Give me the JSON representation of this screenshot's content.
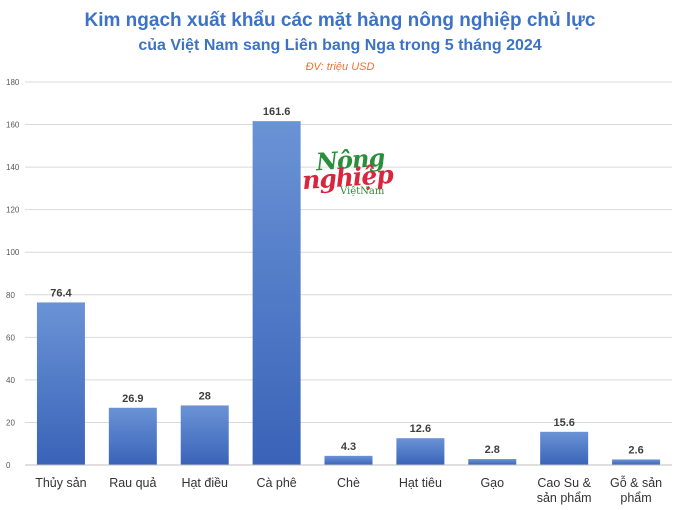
{
  "chart_data": {
    "type": "bar",
    "title": "Kim ngạch xuất khẩu các mặt hàng nông nghiệp chủ lực",
    "subtitle": "của Việt Nam sang Liên bang Nga trong 5 tháng 2024",
    "unit_note": "ĐV: triệu USD",
    "categories": [
      "Thủy sản",
      "Rau quả",
      "Hạt điều",
      "Cà phê",
      "Chè",
      "Hạt tiêu",
      "Gạo",
      "Cao Su & sản phẩm",
      "Gỗ & sản phẩm"
    ],
    "values": [
      76.4,
      26.9,
      28,
      161.6,
      4.3,
      12.6,
      2.8,
      15.6,
      2.6
    ],
    "value_labels": [
      "76.4",
      "26.9",
      "28",
      "161.6",
      "4.3",
      "12.6",
      "2.8",
      "15.6",
      "2.6"
    ],
    "ylim": [
      0,
      180
    ],
    "yticks": [
      0,
      20,
      40,
      60,
      80,
      100,
      120,
      140,
      160,
      180
    ],
    "grid": true,
    "bar_color_top": "#6a93d6",
    "bar_color_bottom": "#3a63b8"
  },
  "logo": {
    "line1": "Nông",
    "line2": "nghiệp",
    "line3": "ViệtNam"
  }
}
